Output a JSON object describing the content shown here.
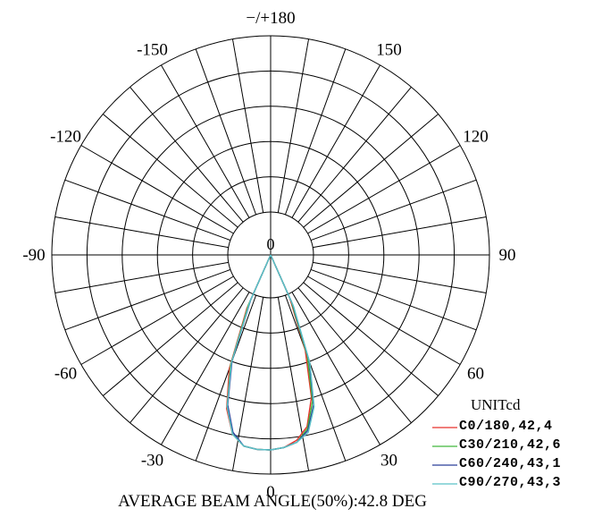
{
  "chart_data": {
    "type": "polar",
    "angle_tick_labels": [
      {
        "label": "0",
        "angle": 0
      },
      {
        "label": "30",
        "angle": 30
      },
      {
        "label": "60",
        "angle": 60
      },
      {
        "label": "90",
        "angle": 90
      },
      {
        "label": "120",
        "angle": 120
      },
      {
        "label": "150",
        "angle": 150
      },
      {
        "label": "−/+180",
        "angle": 180
      },
      {
        "label": "-150",
        "angle": -150
      },
      {
        "label": "-120",
        "angle": -120
      },
      {
        "label": "-90",
        "angle": -90
      },
      {
        "label": "-60",
        "angle": -60
      },
      {
        "label": "-30",
        "angle": -30
      }
    ],
    "center_label": "0",
    "radial_rings": 5,
    "spoke_step_deg": 10,
    "grid": true,
    "unit_label": "UNITcd",
    "legend_placement": "bottom-right",
    "series": [
      {
        "name": "C0/180,42,4",
        "color": "#e8312b",
        "points": [
          [
            -24,
            0.3
          ],
          [
            -20,
            0.62
          ],
          [
            -16,
            0.82
          ],
          [
            -12,
            0.94
          ],
          [
            -8,
            0.99
          ],
          [
            -4,
            1.0
          ],
          [
            0,
            1.0
          ],
          [
            4,
            0.99
          ],
          [
            8,
            0.96
          ],
          [
            12,
            0.9
          ],
          [
            16,
            0.76
          ],
          [
            20,
            0.52
          ],
          [
            24,
            0.24
          ]
        ]
      },
      {
        "name": "C30/210,42,6",
        "color": "#41b83c",
        "points": [
          [
            -24,
            0.28
          ],
          [
            -20,
            0.6
          ],
          [
            -16,
            0.81
          ],
          [
            -12,
            0.94
          ],
          [
            -8,
            0.99
          ],
          [
            -4,
            1.0
          ],
          [
            0,
            1.0
          ],
          [
            4,
            0.99
          ],
          [
            8,
            0.97
          ],
          [
            12,
            0.91
          ],
          [
            16,
            0.78
          ],
          [
            20,
            0.55
          ],
          [
            24,
            0.26
          ]
        ]
      },
      {
        "name": "C60/240,43,1",
        "color": "#2a3f99",
        "points": [
          [
            -24,
            0.25
          ],
          [
            -20,
            0.58
          ],
          [
            -16,
            0.8
          ],
          [
            -12,
            0.93
          ],
          [
            -8,
            0.99
          ],
          [
            -4,
            1.0
          ],
          [
            0,
            1.0
          ],
          [
            4,
            0.99
          ],
          [
            8,
            0.97
          ],
          [
            12,
            0.92
          ],
          [
            16,
            0.8
          ],
          [
            20,
            0.58
          ],
          [
            24,
            0.28
          ]
        ]
      },
      {
        "name": "C90/270,43,3",
        "color": "#5bc2c8",
        "points": [
          [
            -24,
            0.26
          ],
          [
            -20,
            0.59
          ],
          [
            -16,
            0.81
          ],
          [
            -12,
            0.94
          ],
          [
            -8,
            0.99
          ],
          [
            -4,
            1.0
          ],
          [
            0,
            1.0
          ],
          [
            4,
            0.99
          ],
          [
            8,
            0.97
          ],
          [
            12,
            0.93
          ],
          [
            16,
            0.81
          ],
          [
            20,
            0.59
          ],
          [
            24,
            0.29
          ]
        ]
      }
    ],
    "footer": "AVERAGE BEAM ANGLE(50%):42.8 DEG"
  }
}
